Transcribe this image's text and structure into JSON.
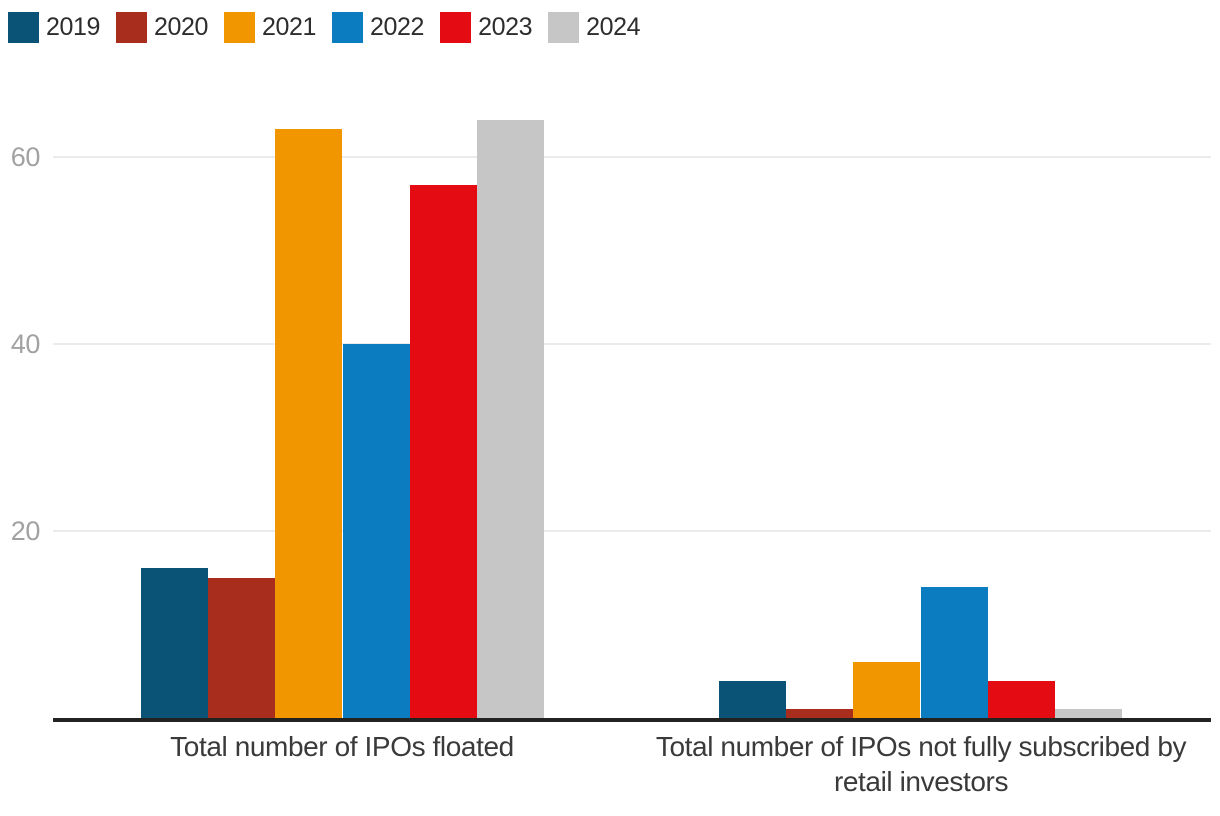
{
  "chart_data": {
    "type": "bar",
    "title": "",
    "xlabel": "",
    "ylabel": "",
    "categories": [
      "Total number of IPOs floated",
      "Total number of IPOs not fully subscribed by retail investors"
    ],
    "series": [
      {
        "name": "2019",
        "color": "#0a5276",
        "values": [
          16,
          4
        ]
      },
      {
        "name": "2020",
        "color": "#a92d1c",
        "values": [
          15,
          1
        ]
      },
      {
        "name": "2021",
        "color": "#f29600",
        "values": [
          63,
          6
        ]
      },
      {
        "name": "2022",
        "color": "#0b7cc0",
        "values": [
          40,
          14
        ]
      },
      {
        "name": "2023",
        "color": "#e40b13",
        "values": [
          57,
          4
        ]
      },
      {
        "name": "2024",
        "color": "#c6c6c6",
        "values": [
          64,
          1
        ]
      }
    ],
    "yticks": [
      20,
      40,
      60
    ],
    "ylim": [
      0,
      66
    ],
    "grid": true,
    "legend_position": "top-left"
  },
  "colors": {
    "background": "#ffffff",
    "axis": "#222221",
    "gridline": "#ebebeb",
    "tick_label": "#a2a2a2",
    "category_label": "#3a3a3a",
    "legend_label": "#2d2d2d"
  }
}
